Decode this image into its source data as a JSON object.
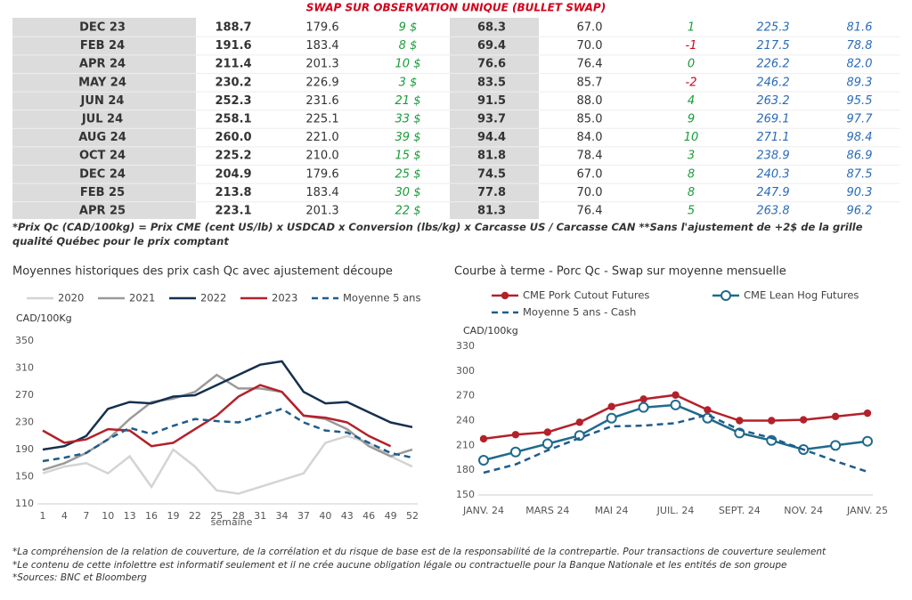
{
  "table": {
    "title": "SWAP SUR OBSERVATION UNIQUE (BULLET SWAP)",
    "rows": [
      [
        "DEC 23",
        "188.7",
        "179.6",
        "9 $",
        "68.3",
        "67.0",
        "1",
        "225.3",
        "81.6"
      ],
      [
        "FEB 24",
        "191.6",
        "183.4",
        "8 $",
        "69.4",
        "70.0",
        "-1",
        "217.5",
        "78.8"
      ],
      [
        "APR 24",
        "211.4",
        "201.3",
        "10 $",
        "76.6",
        "76.4",
        "0",
        "226.2",
        "82.0"
      ],
      [
        "MAY 24",
        "230.2",
        "226.9",
        "3 $",
        "83.5",
        "85.7",
        "-2",
        "246.2",
        "89.3"
      ],
      [
        "JUN 24",
        "252.3",
        "231.6",
        "21 $",
        "91.5",
        "88.0",
        "4",
        "263.2",
        "95.5"
      ],
      [
        "JUL 24",
        "258.1",
        "225.1",
        "33 $",
        "93.7",
        "85.0",
        "9",
        "269.1",
        "97.7"
      ],
      [
        "AUG 24",
        "260.0",
        "221.0",
        "39 $",
        "94.4",
        "84.0",
        "10",
        "271.1",
        "98.4"
      ],
      [
        "OCT 24",
        "225.2",
        "210.0",
        "15 $",
        "81.8",
        "78.4",
        "3",
        "238.9",
        "86.9"
      ],
      [
        "DEC 24",
        "204.9",
        "179.6",
        "25 $",
        "74.5",
        "67.0",
        "8",
        "240.3",
        "87.5"
      ],
      [
        "FEB 25",
        "213.8",
        "183.4",
        "30 $",
        "77.8",
        "70.0",
        "8",
        "247.9",
        "90.3"
      ],
      [
        "APR 25",
        "223.1",
        "201.3",
        "22 $",
        "81.3",
        "76.4",
        "5",
        "263.8",
        "96.2"
      ]
    ],
    "note": "*Prix Qc (CAD/100kg) = Prix CME (cent US/lb) x USDCAD x Conversion (lbs/kg) x Carcasse US / Carcasse CAN **Sans l'ajustement de +2$ de la grille qualité Québec pour le prix comptant"
  },
  "chart_data": [
    {
      "type": "line",
      "title": "Moyennes historiques des prix cash Qc avec ajustement découpe",
      "y_label": "CAD/100Kg",
      "x_label": "semaine",
      "x": [
        1,
        4,
        7,
        10,
        13,
        16,
        19,
        22,
        25,
        28,
        31,
        34,
        37,
        40,
        43,
        46,
        49,
        52
      ],
      "xlim": [
        1,
        52
      ],
      "xticks": [
        1,
        4,
        7,
        10,
        13,
        16,
        19,
        22,
        25,
        28,
        31,
        34,
        37,
        40,
        43,
        46,
        49,
        52
      ],
      "ylim": [
        110,
        350
      ],
      "yticks": [
        110,
        150,
        190,
        230,
        270,
        310,
        350
      ],
      "series": [
        {
          "name": "2020",
          "color": "#d4d4d4",
          "dashed": false,
          "values": [
            155,
            165,
            170,
            155,
            180,
            135,
            190,
            165,
            130,
            125,
            135,
            145,
            155,
            200,
            210,
            200,
            180,
            165
          ]
        },
        {
          "name": "2021",
          "color": "#9a9a9a",
          "dashed": false,
          "values": [
            160,
            170,
            185,
            205,
            235,
            260,
            265,
            275,
            300,
            280,
            280,
            275,
            240,
            235,
            220,
            195,
            180,
            190
          ]
        },
        {
          "name": "2022",
          "color": "#15304f",
          "dashed": false,
          "values": [
            190,
            195,
            210,
            250,
            260,
            258,
            268,
            270,
            285,
            300,
            315,
            320,
            275,
            258,
            260,
            245,
            230,
            223
          ]
        },
        {
          "name": "2023",
          "color": "#b3212a",
          "dashed": false,
          "values": [
            218,
            200,
            205,
            220,
            218,
            195,
            200,
            220,
            240,
            268,
            285,
            275,
            240,
            237,
            230,
            210,
            195,
            null
          ]
        },
        {
          "name": "Moyenne 5 ans",
          "color": "#1f5c8c",
          "dashed": true,
          "values": [
            173,
            178,
            185,
            205,
            222,
            213,
            225,
            235,
            232,
            230,
            240,
            250,
            230,
            218,
            215,
            200,
            185,
            178
          ]
        }
      ]
    },
    {
      "type": "line",
      "title": "Courbe à terme - Porc Qc - Swap sur moyenne mensuelle",
      "y_label": "CAD/100kg",
      "categories": [
        "JANV. 24",
        null,
        "MARS 24",
        null,
        "MAI 24",
        null,
        "JUIL. 24",
        null,
        "SEPT. 24",
        null,
        "NOV. 24",
        null,
        "JANV. 25"
      ],
      "ylim": [
        150,
        330
      ],
      "yticks": [
        150,
        180,
        210,
        240,
        270,
        300,
        330
      ],
      "series": [
        {
          "name": "CME Pork Cutout Futures",
          "color": "#b3212a",
          "dashed": false,
          "marker": "filled",
          "values": [
            218,
            223,
            226,
            238,
            257,
            266,
            271,
            253,
            240,
            240,
            241,
            245,
            249
          ]
        },
        {
          "name": "CME Lean Hog Futures",
          "color": "#1f6a8c",
          "dashed": false,
          "marker": "open",
          "values": [
            192,
            202,
            212,
            222,
            243,
            256,
            259,
            243,
            225,
            216,
            205,
            210,
            215
          ]
        },
        {
          "name": "Moyenne 5 ans - Cash",
          "color": "#1f5c8c",
          "dashed": true,
          "values": [
            177,
            187,
            204,
            219,
            233,
            234,
            237,
            247,
            229,
            219,
            205,
            191,
            178
          ]
        }
      ]
    }
  ],
  "notes": [
    "*La compréhension de la relation de couverture, de la corrélation et du risque de base est de la responsabilité de la contrepartie. Pour transactions de couverture seulement",
    "*Le contenu de cette infolettre est informatif seulement et il ne crée aucune obligation légale ou contractuelle pour la Banque Nationale et les entités de son groupe",
    "*Sources: BNC et Bloomberg"
  ]
}
